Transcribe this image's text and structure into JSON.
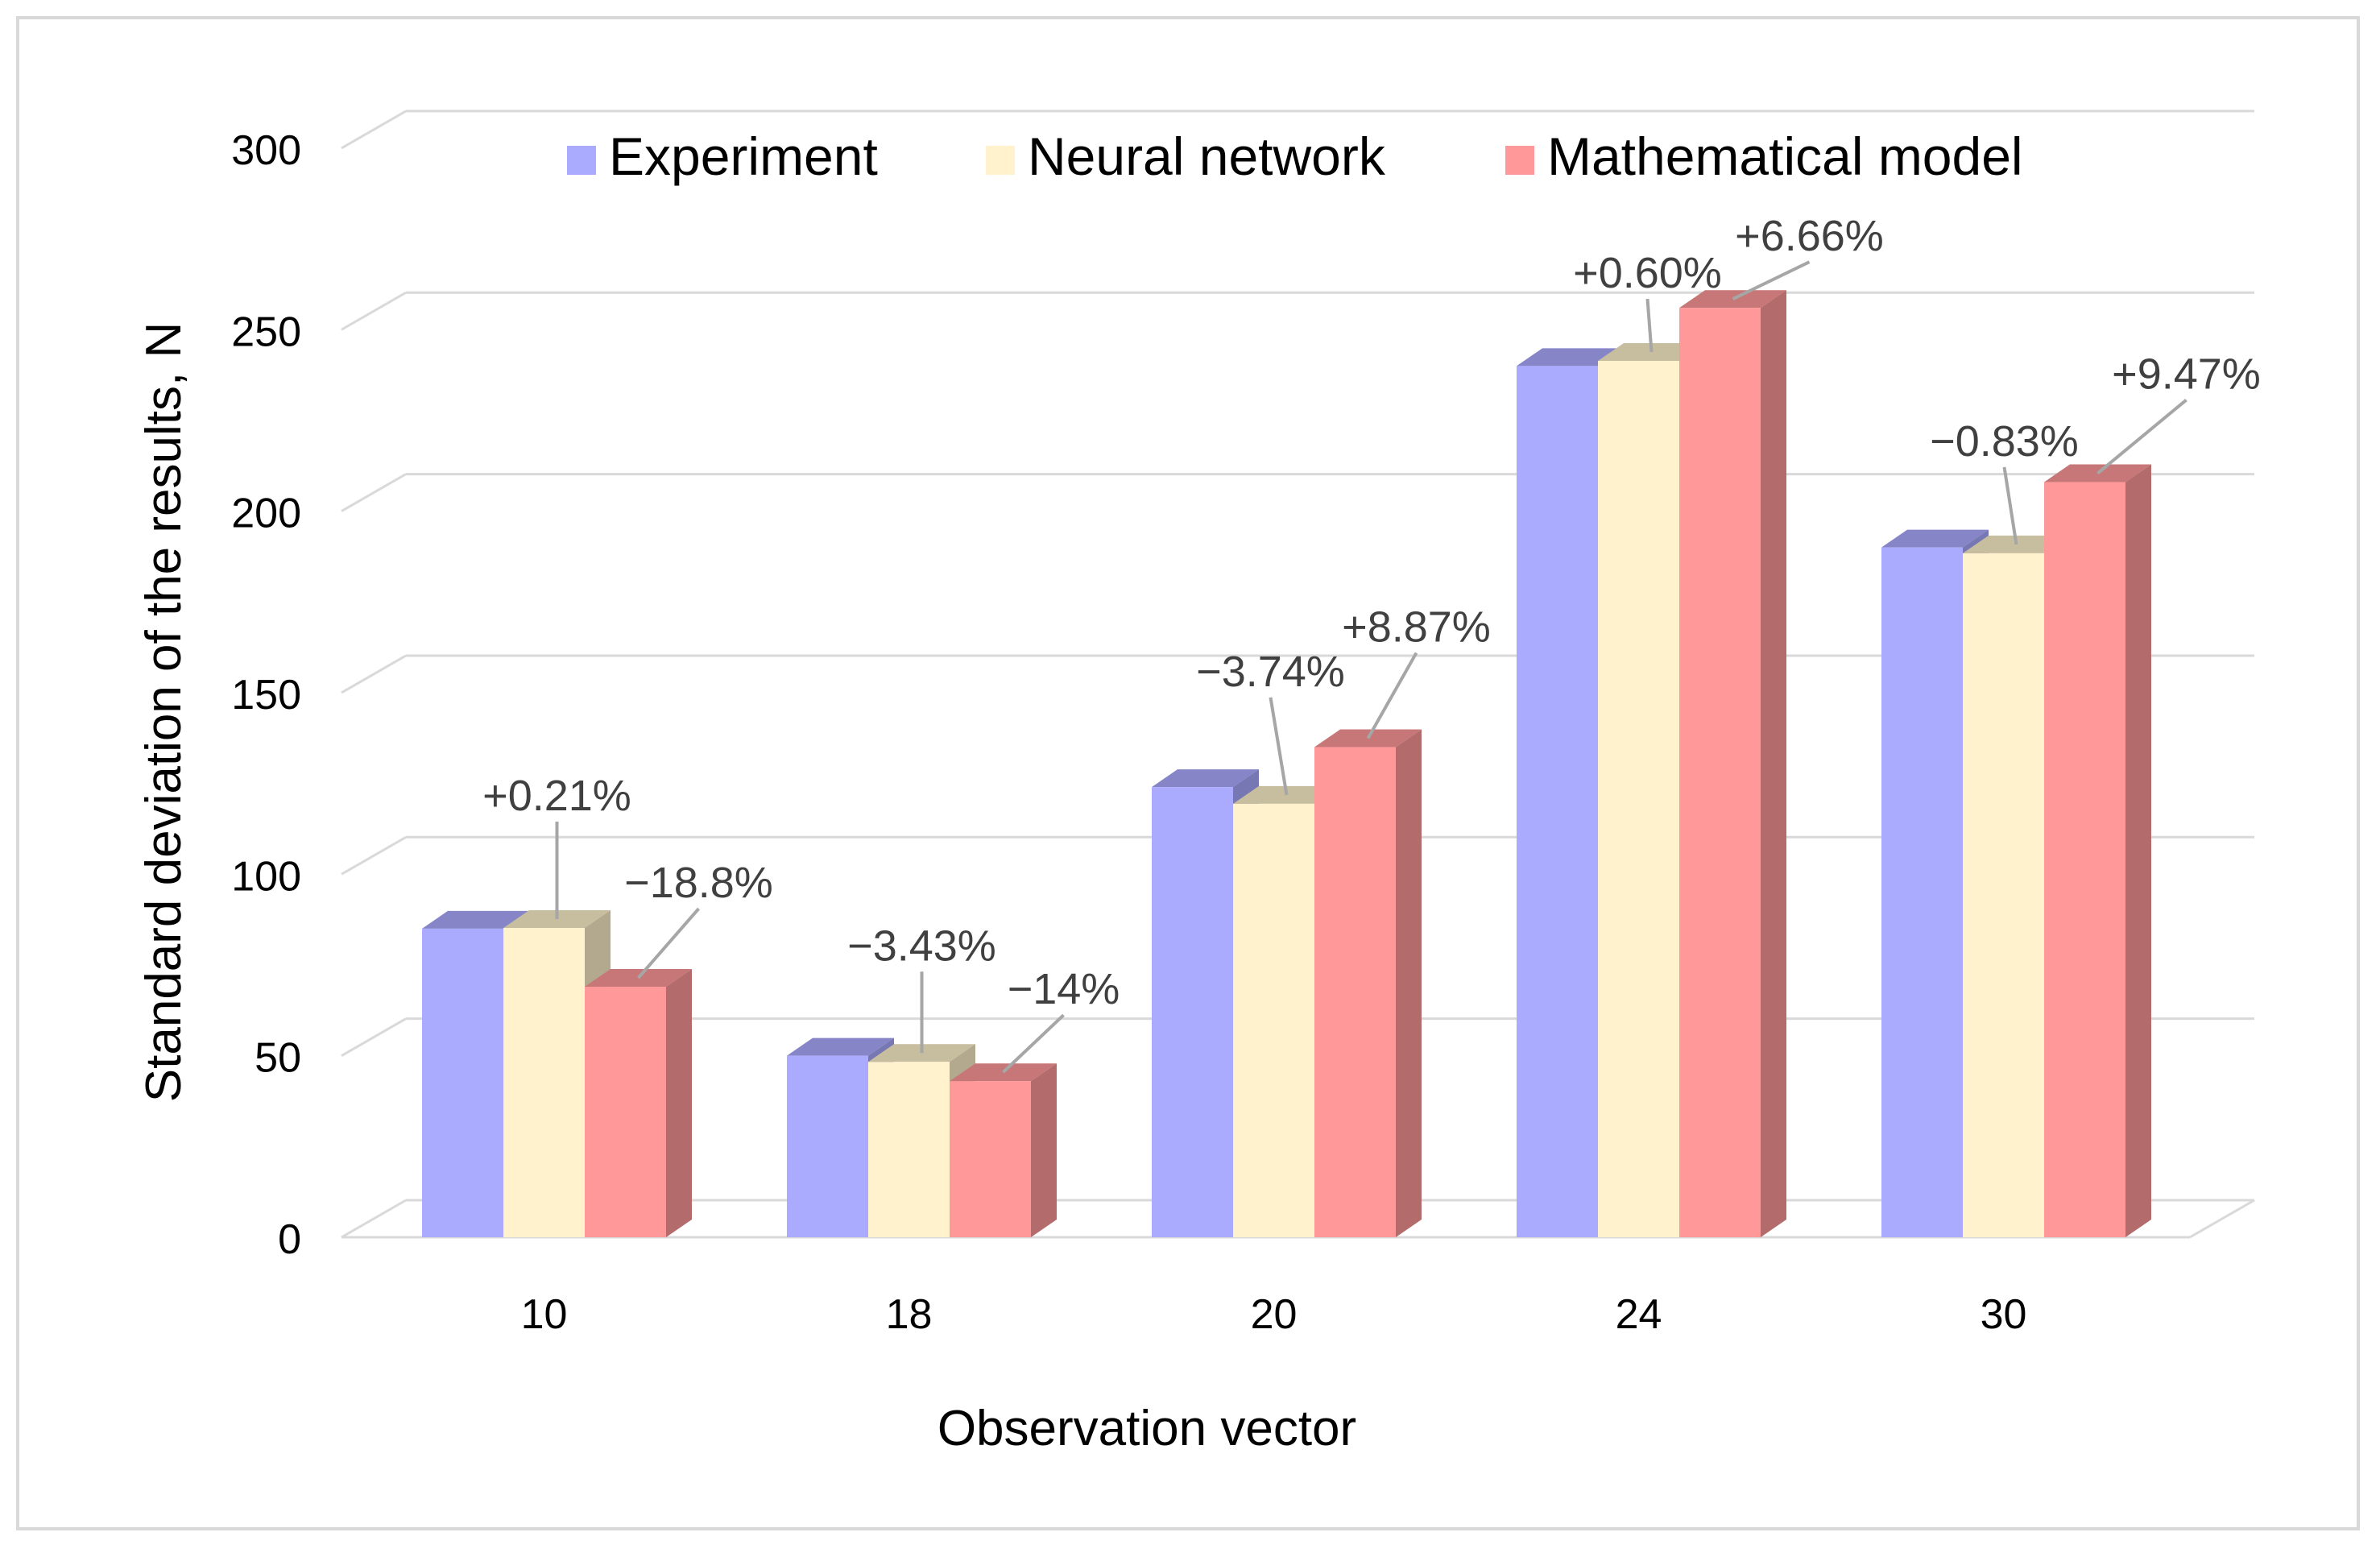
{
  "chart_data": {
    "type": "bar",
    "style": "3d-clustered-column",
    "title": "",
    "xlabel": "Observation vector",
    "ylabel": "Standard deviation of the results, N",
    "categories": [
      "10",
      "18",
      "20",
      "24",
      "30"
    ],
    "ylim": [
      0,
      300
    ],
    "yticks": [
      0,
      50,
      100,
      150,
      200,
      250,
      300
    ],
    "grid": true,
    "legend": "top",
    "series": [
      {
        "name": "Experiment",
        "color": "#aaaaff",
        "values": [
          85,
          50,
          124,
          240,
          190
        ]
      },
      {
        "name": "Neural network",
        "color": "#fff2cc",
        "values": [
          85.2,
          48.3,
          119.4,
          241.4,
          188.4
        ]
      },
      {
        "name": "Mathematical model",
        "color": "#ff9999",
        "values": [
          69,
          43,
          135,
          256,
          208
        ]
      }
    ],
    "annotations": [
      {
        "category": "10",
        "series": "Neural network",
        "text": "+0.21%"
      },
      {
        "category": "10",
        "series": "Mathematical model",
        "text": "−18.8%"
      },
      {
        "category": "18",
        "series": "Neural network",
        "text": "−3.43%"
      },
      {
        "category": "18",
        "series": "Mathematical model",
        "text": "−14%"
      },
      {
        "category": "20",
        "series": "Neural network",
        "text": "−3.74%"
      },
      {
        "category": "20",
        "series": "Mathematical model",
        "text": "+8.87%"
      },
      {
        "category": "24",
        "series": "Neural network",
        "text": "+0.60%"
      },
      {
        "category": "24",
        "series": "Mathematical model",
        "text": "+6.66%"
      },
      {
        "category": "30",
        "series": "Neural network",
        "text": "−0.83%"
      },
      {
        "category": "30",
        "series": "Mathematical model",
        "text": "+9.47%"
      }
    ]
  }
}
